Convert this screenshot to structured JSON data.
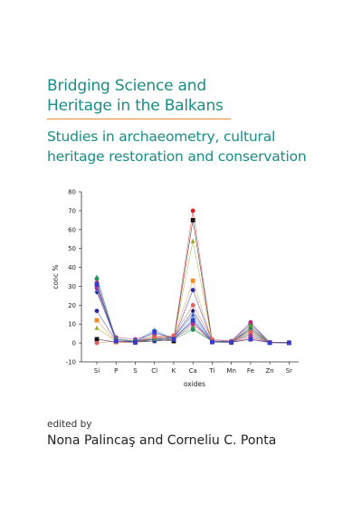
{
  "title_lines": [
    "Bridging Science and",
    "Heritage in the Balkans"
  ],
  "subtitle_lines": [
    "Studies in archaeometry, cultural",
    "heritage restoration and conservation"
  ],
  "edited_label": "edited by",
  "editors": "Nona Palincaş and Corneliu C. Ponta",
  "colors": {
    "title": "#1a8d86",
    "rule": "#e38a36"
  },
  "chart_data": {
    "type": "line",
    "categories": [
      "Si",
      "P",
      "S",
      "Cl",
      "K",
      "Ca",
      "Ti",
      "Mn",
      "Fe",
      "Zn",
      "Sr"
    ],
    "xlabel": "oxides",
    "ylabel": "conc %",
    "ylim": [
      -10,
      80
    ],
    "yticks": [
      -10,
      0,
      10,
      20,
      30,
      40,
      50,
      60,
      70,
      80
    ],
    "series": [
      {
        "color": "#e41a1c",
        "marker": "circle",
        "values": [
          30,
          1,
          0.5,
          1,
          2,
          70,
          1,
          0.5,
          3,
          0.3,
          0.2
        ]
      },
      {
        "color": "#111111",
        "marker": "square",
        "values": [
          2,
          0.5,
          0.3,
          2,
          1,
          65,
          0.5,
          0.3,
          2,
          0.2,
          0.1
        ]
      },
      {
        "color": "#9aa52a",
        "marker": "triangle",
        "values": [
          8,
          1,
          0.5,
          1,
          2,
          54,
          1,
          0.5,
          5,
          0.2,
          0.1
        ]
      },
      {
        "color": "#f08a24",
        "marker": "square",
        "values": [
          12,
          0.5,
          0.5,
          3,
          3,
          33,
          1,
          0.5,
          6,
          0.2,
          0.1
        ]
      },
      {
        "color": "#2a2aa0",
        "marker": "circle",
        "values": [
          17,
          1,
          1,
          1,
          2,
          28,
          1,
          1,
          10,
          0.3,
          0.2
        ]
      },
      {
        "color": "#1a1a6a",
        "marker": "diamond",
        "values": [
          27,
          2,
          1,
          2,
          3,
          17,
          1,
          0.5,
          8,
          0.2,
          0.2
        ]
      },
      {
        "color": "#3a5fd0",
        "marker": "triangle",
        "values": [
          28,
          1,
          0.5,
          2,
          3,
          15,
          1,
          1,
          7,
          0.2,
          0.1
        ]
      },
      {
        "color": "#2aa6a0",
        "marker": "triangle",
        "values": [
          35,
          1,
          1,
          7,
          2,
          13,
          1,
          0.5,
          5,
          0.2,
          0.1
        ]
      },
      {
        "color": "#c02a7a",
        "marker": "circle",
        "values": [
          32,
          1,
          1,
          3,
          2,
          10,
          1,
          1,
          11,
          0.3,
          0.2
        ]
      },
      {
        "color": "#5a9a3a",
        "marker": "circle",
        "values": [
          31,
          2,
          1,
          4,
          3,
          8,
          1,
          0.5,
          9,
          0.2,
          0.2
        ]
      },
      {
        "color": "#9a3aa0",
        "marker": "circle",
        "values": [
          29,
          3,
          2,
          5,
          3,
          11,
          1,
          1,
          4,
          0.2,
          0.2
        ]
      },
      {
        "color": "#2a8a5a",
        "marker": "circle",
        "values": [
          34,
          2,
          1,
          2,
          2,
          7,
          1,
          0.5,
          7,
          0.2,
          0.1
        ]
      },
      {
        "color": "#e06060",
        "marker": "circle",
        "values": [
          0,
          1,
          0.5,
          3,
          4,
          20,
          2,
          1,
          6,
          0.3,
          0.2
        ]
      },
      {
        "color": "#3a3ad0",
        "marker": "square",
        "values": [
          31,
          1,
          0.5,
          6,
          2,
          12,
          0.5,
          0.5,
          2,
          0.2,
          0.1
        ]
      }
    ]
  }
}
